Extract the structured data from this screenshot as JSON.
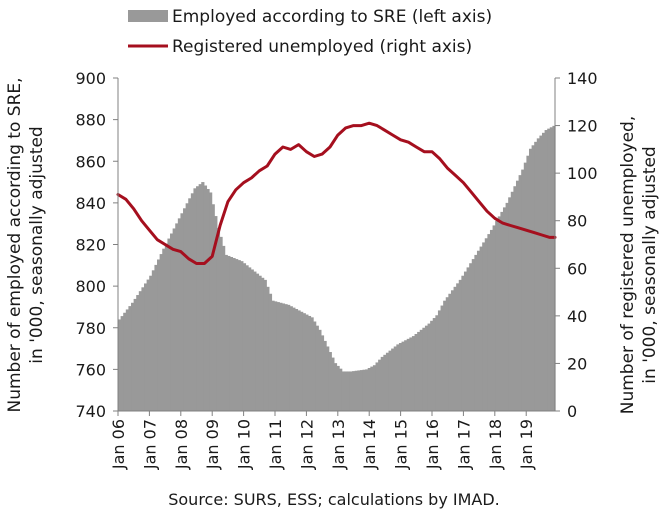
{
  "chart_data": {
    "type": "area",
    "x_tick_labels": [
      "Jan 06",
      "Jan 07",
      "Jan 08",
      "Jan 09",
      "Jan 10",
      "Jan 11",
      "Jan 12",
      "Jan 13",
      "Jan 14",
      "Jan 15",
      "Jan 16",
      "Jan 17",
      "Jan 18",
      "Jan 19"
    ],
    "ylabel_left": "Number of employed according to SRE, in '000, seasonally adjusted",
    "ylabel_right": "Number of registered unemployed, in '000, seasonally adjusted",
    "ylim_left": [
      740,
      900
    ],
    "ylim_right": [
      0,
      140
    ],
    "yticks_left": [
      740,
      760,
      780,
      800,
      820,
      840,
      860,
      880,
      900
    ],
    "yticks_right": [
      0,
      20,
      40,
      60,
      80,
      100,
      120,
      140
    ],
    "legend_placement": "top",
    "source": "Source: SURS, ESS; calculations by IMAD.",
    "series": [
      {
        "name": "Employed according to SRE (left axis)",
        "kind": "area",
        "axis": "left",
        "color": "#999999",
        "points": [
          [
            "2006-01",
            784
          ],
          [
            "2006-06",
            792
          ],
          [
            "2007-01",
            805
          ],
          [
            "2007-06",
            818
          ],
          [
            "2008-01",
            835
          ],
          [
            "2008-06",
            847
          ],
          [
            "2008-09",
            850
          ],
          [
            "2008-12",
            845
          ],
          [
            "2009-03",
            828
          ],
          [
            "2009-06",
            815
          ],
          [
            "2009-12",
            812
          ],
          [
            "2010-06",
            806
          ],
          [
            "2010-09",
            803
          ],
          [
            "2010-12",
            793
          ],
          [
            "2011-06",
            791
          ],
          [
            "2011-12",
            787
          ],
          [
            "2012-03",
            785
          ],
          [
            "2012-06",
            779
          ],
          [
            "2012-09",
            771
          ],
          [
            "2012-12",
            763
          ],
          [
            "2013-03",
            759
          ],
          [
            "2013-06",
            759
          ],
          [
            "2013-12",
            760
          ],
          [
            "2014-03",
            762
          ],
          [
            "2014-06",
            766
          ],
          [
            "2014-12",
            772
          ],
          [
            "2015-06",
            776
          ],
          [
            "2015-12",
            782
          ],
          [
            "2016-03",
            786
          ],
          [
            "2016-06",
            793
          ],
          [
            "2016-12",
            803
          ],
          [
            "2017-06",
            815
          ],
          [
            "2017-12",
            827
          ],
          [
            "2018-06",
            840
          ],
          [
            "2018-12",
            856
          ],
          [
            "2019-03",
            866
          ],
          [
            "2019-06",
            871
          ],
          [
            "2019-09",
            875
          ],
          [
            "2019-12",
            877
          ]
        ]
      },
      {
        "name": "Registered unemployed (right axis)",
        "kind": "line",
        "axis": "right",
        "color": "#a50f1e",
        "points": [
          [
            "2006-01",
            91
          ],
          [
            "2006-04",
            89
          ],
          [
            "2006-07",
            85
          ],
          [
            "2006-10",
            80
          ],
          [
            "2007-01",
            76
          ],
          [
            "2007-04",
            72
          ],
          [
            "2007-07",
            70
          ],
          [
            "2007-10",
            68
          ],
          [
            "2008-01",
            67
          ],
          [
            "2008-04",
            64
          ],
          [
            "2008-07",
            62
          ],
          [
            "2008-10",
            62
          ],
          [
            "2009-01",
            65
          ],
          [
            "2009-04",
            78
          ],
          [
            "2009-07",
            88
          ],
          [
            "2009-10",
            93
          ],
          [
            "2010-01",
            96
          ],
          [
            "2010-04",
            98
          ],
          [
            "2010-07",
            101
          ],
          [
            "2010-10",
            103
          ],
          [
            "2011-01",
            108
          ],
          [
            "2011-04",
            111
          ],
          [
            "2011-07",
            110
          ],
          [
            "2011-10",
            112
          ],
          [
            "2012-01",
            109
          ],
          [
            "2012-04",
            107
          ],
          [
            "2012-07",
            108
          ],
          [
            "2012-10",
            111
          ],
          [
            "2013-01",
            116
          ],
          [
            "2013-04",
            119
          ],
          [
            "2013-07",
            120
          ],
          [
            "2013-10",
            120
          ],
          [
            "2014-01",
            121
          ],
          [
            "2014-04",
            120
          ],
          [
            "2014-07",
            118
          ],
          [
            "2014-10",
            116
          ],
          [
            "2015-01",
            114
          ],
          [
            "2015-04",
            113
          ],
          [
            "2015-07",
            111
          ],
          [
            "2015-10",
            109
          ],
          [
            "2016-01",
            109
          ],
          [
            "2016-04",
            106
          ],
          [
            "2016-07",
            102
          ],
          [
            "2016-10",
            99
          ],
          [
            "2017-01",
            96
          ],
          [
            "2017-04",
            92
          ],
          [
            "2017-07",
            88
          ],
          [
            "2017-10",
            84
          ],
          [
            "2018-01",
            81
          ],
          [
            "2018-04",
            79
          ],
          [
            "2018-07",
            78
          ],
          [
            "2018-10",
            77
          ],
          [
            "2019-01",
            76
          ],
          [
            "2019-04",
            75
          ],
          [
            "2019-07",
            74
          ],
          [
            "2019-10",
            73
          ],
          [
            "2019-12",
            73
          ]
        ]
      }
    ]
  }
}
